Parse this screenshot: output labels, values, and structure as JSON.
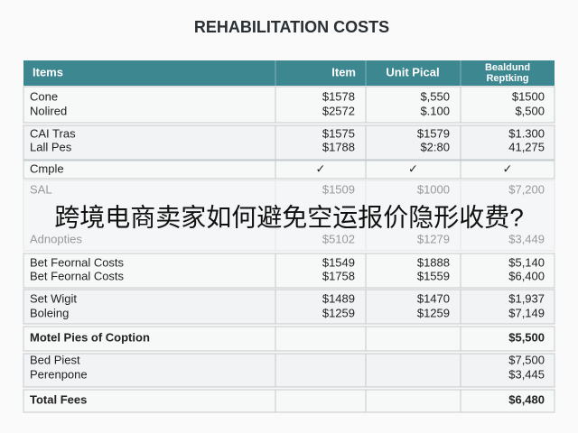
{
  "title": "REHABILITATION COSTS",
  "table": {
    "header": [
      "Items",
      "Item",
      "Unit Pical",
      [
        "Bealdund",
        "Reptking"
      ]
    ],
    "groups": [
      {
        "rows": [
          [
            "Cone",
            "$1578",
            "$,550",
            "$1500"
          ],
          [
            "Nolired",
            "$2572",
            "$.100",
            "$,500"
          ]
        ]
      },
      {
        "rows": [
          [
            "CAI Tras",
            "$1575",
            "$1579",
            "$1.300"
          ],
          [
            "Lall Pes",
            "$1788",
            "$2:80",
            "41,275"
          ]
        ]
      },
      {
        "rows": [
          [
            "Cmple",
            "✓",
            "✓",
            "✓"
          ]
        ]
      },
      {
        "rows": [
          [
            "SAL",
            "$1509",
            "$1000",
            "$7,200"
          ],
          [
            "Adnopties",
            "$5102",
            "$1279",
            "$3,449"
          ]
        ]
      },
      {
        "rows": [
          [
            "Bet Feornal Costs",
            "$1549",
            "$1888",
            "$5,140"
          ],
          [
            "Bet Feornal Costs",
            "$1758",
            "$1559",
            "$6,400"
          ]
        ]
      },
      {
        "rows": [
          [
            "Set Wigit",
            "$1489",
            "$1470",
            "$1,937"
          ],
          [
            "Boleing",
            "$1259",
            "$1259",
            "$7,149"
          ]
        ]
      },
      {
        "rows": [
          [
            "Motel Pies of Coption",
            null,
            null,
            "$5,500"
          ]
        ]
      },
      {
        "rows": [
          [
            "Bed Piest",
            null,
            null,
            "$7,500"
          ],
          [
            "Perenpone",
            null,
            null,
            "$3,445"
          ]
        ]
      },
      {
        "rows": [
          [
            "Total Fees",
            null,
            null,
            "$6,480"
          ]
        ]
      }
    ]
  },
  "overlay": "跨境电商卖家如何避免空运报价隐形收费?"
}
